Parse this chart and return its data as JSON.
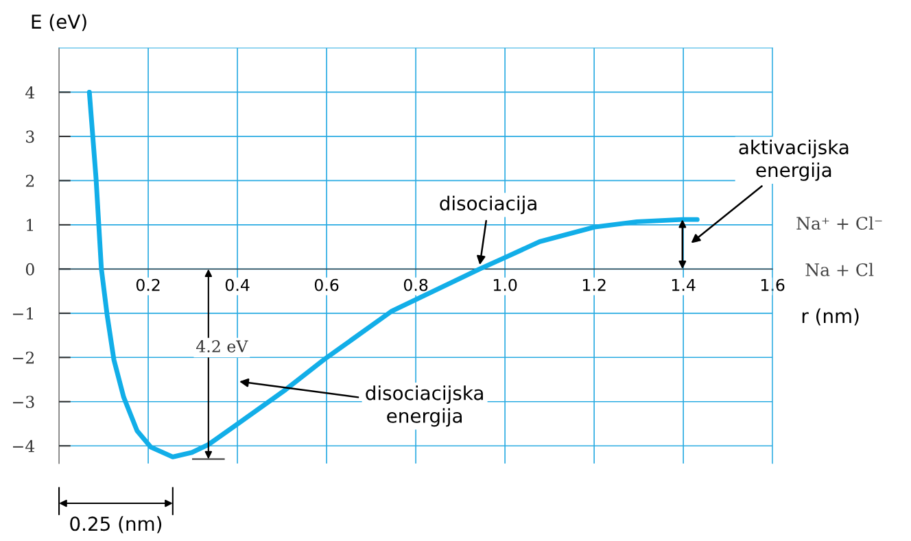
{
  "chart_data": {
    "type": "line",
    "xlabel": "r (nm)",
    "ylabel": "E (eV)",
    "color": "#12aee8",
    "x": [
      0.068,
      0.083,
      0.095,
      0.108,
      0.123,
      0.145,
      0.175,
      0.206,
      0.255,
      0.298,
      0.335,
      0.397,
      0.508,
      0.594,
      0.745,
      0.943,
      1.0,
      1.078,
      1.201,
      1.296,
      1.398,
      1.431
    ],
    "values": [
      4,
      2.05,
      0,
      -1.05,
      -2.05,
      -2.9,
      -3.66,
      -4.03,
      -4.25,
      -4.15,
      -3.97,
      -3.53,
      -2.73,
      -2.05,
      -0.96,
      0,
      0.26,
      0.62,
      0.95,
      1.07,
      1.12,
      1.12
    ],
    "xlim": [
      0,
      1.6
    ],
    "ylim": [
      -4.4,
      5
    ],
    "xticks": [
      0.2,
      0.4,
      0.6,
      0.8,
      {
        "value": 1.0,
        "label": "1.0"
      },
      1.2,
      1.4,
      1.6
    ],
    "yticks": [
      {
        "value": -4,
        "label": "−4"
      },
      {
        "value": -3,
        "label": "−3"
      },
      {
        "value": -2,
        "label": "−2"
      },
      {
        "value": -1,
        "label": "−1"
      },
      0,
      1,
      2,
      3,
      4
    ],
    "grid": true,
    "marker": "none",
    "line_style": "solid",
    "annotations": [
      {
        "text": "disociacija",
        "x": 0.943,
        "y": 0
      },
      "disociacijska\nenergija",
      "aktivacijska\nenergija",
      "4.2 eV",
      "0.25 (nm)",
      "Na⁺ + Cl⁻",
      "Na + Cl"
    ]
  }
}
